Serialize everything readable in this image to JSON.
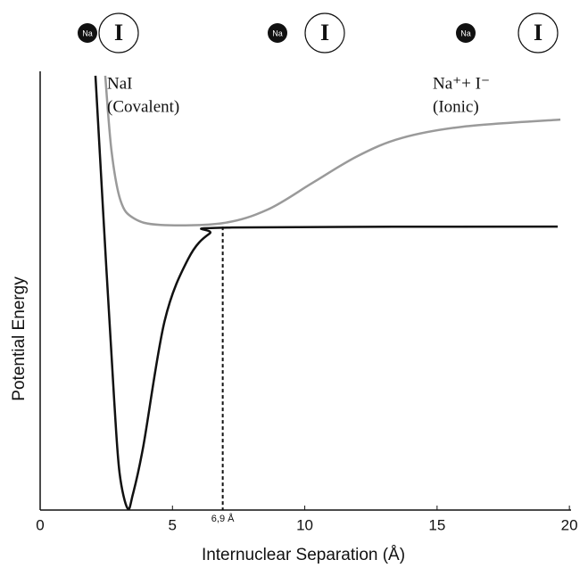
{
  "chart_data": {
    "type": "line",
    "xlabel": "Internuclear Separation (Å)",
    "ylabel": "Potential Energy",
    "xlim": [
      0,
      20.4
    ],
    "ylim": [
      0,
      100
    ],
    "xticks": [
      0,
      5,
      10,
      15,
      20
    ],
    "grid": false,
    "series": [
      {
        "color": "#111111",
        "x": [
          2.09,
          2.5,
          2.8,
          3.0,
          3.3,
          3.5,
          3.9,
          4.7,
          5.6,
          6.4,
          7.25,
          19.56
        ],
        "values": [
          99,
          55.3,
          24.8,
          8.5,
          0.4,
          3.5,
          14.6,
          43,
          57.3,
          63,
          64.4,
          64.6
        ]
      },
      {
        "color": "#9a9a9a",
        "x": [
          2.46,
          2.7,
          3.04,
          3.54,
          4.55,
          6.9,
          8.6,
          10.3,
          12,
          13.66,
          16,
          19.66
        ],
        "values": [
          99,
          81.7,
          70.5,
          66.5,
          65,
          65.4,
          68.5,
          74.6,
          80.7,
          84.8,
          87.4,
          89
        ]
      }
    ],
    "annotations": [
      {
        "text": "NaI",
        "subtext": "(Covalent)"
      },
      {
        "text": "Na⁺+ I⁻",
        "subtext": "(Ionic)"
      }
    ],
    "marker": {
      "x": 6.9,
      "y": 64.6,
      "label": "6,9 Å"
    },
    "illustrations": [
      {
        "small": "Na",
        "large": "I"
      },
      {
        "small": "Na",
        "large": "I"
      },
      {
        "small": "Na",
        "large": "I"
      }
    ]
  }
}
